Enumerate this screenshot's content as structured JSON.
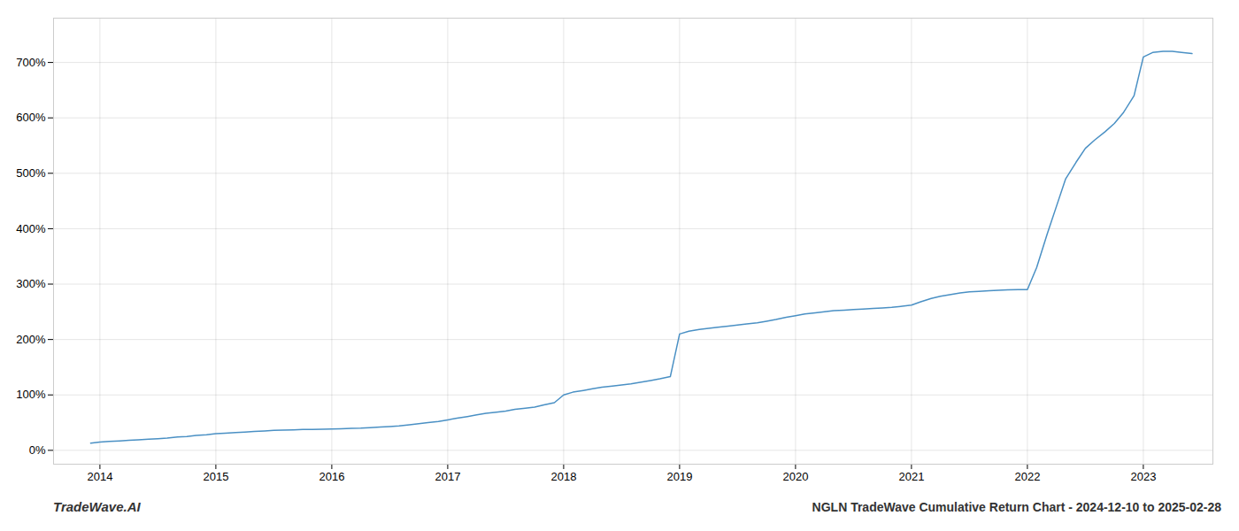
{
  "chart_data": {
    "type": "line",
    "title": "NGLN TradeWave Cumulative Return Chart - 2024-12-10 to 2025-02-28",
    "annotations": [
      "TradeWave.AI"
    ],
    "color": "#4a90c4",
    "grid": true,
    "x": [
      2013.92,
      2014.0,
      2014.08,
      2014.17,
      2014.25,
      2014.33,
      2014.42,
      2014.5,
      2014.58,
      2014.67,
      2014.75,
      2014.83,
      2014.92,
      2015.0,
      2015.08,
      2015.17,
      2015.25,
      2015.33,
      2015.42,
      2015.5,
      2015.58,
      2015.67,
      2015.75,
      2015.83,
      2015.92,
      2016.0,
      2016.08,
      2016.17,
      2016.25,
      2016.33,
      2016.42,
      2016.5,
      2016.58,
      2016.67,
      2016.75,
      2016.83,
      2016.92,
      2017.0,
      2017.08,
      2017.17,
      2017.25,
      2017.33,
      2017.42,
      2017.5,
      2017.58,
      2017.67,
      2017.75,
      2017.83,
      2017.92,
      2018.0,
      2018.08,
      2018.17,
      2018.25,
      2018.33,
      2018.42,
      2018.5,
      2018.58,
      2018.67,
      2018.75,
      2018.83,
      2018.92,
      2019.0,
      2019.08,
      2019.17,
      2019.25,
      2019.33,
      2019.42,
      2019.5,
      2019.58,
      2019.67,
      2019.75,
      2019.83,
      2019.92,
      2020.0,
      2020.08,
      2020.17,
      2020.25,
      2020.33,
      2020.42,
      2020.5,
      2020.58,
      2020.67,
      2020.75,
      2020.83,
      2020.92,
      2021.0,
      2021.08,
      2021.17,
      2021.25,
      2021.33,
      2021.42,
      2021.5,
      2021.58,
      2021.67,
      2021.75,
      2021.83,
      2021.92,
      2022.0,
      2022.08,
      2022.17,
      2022.25,
      2022.33,
      2022.42,
      2022.5,
      2022.58,
      2022.67,
      2022.75,
      2022.83,
      2022.92,
      2023.0,
      2023.08,
      2023.17,
      2023.25,
      2023.33,
      2023.42
    ],
    "values": [
      13,
      15,
      16,
      17,
      18,
      19,
      20,
      21,
      22,
      24,
      25,
      27,
      28,
      30,
      31,
      32,
      33,
      34,
      35,
      36,
      36.5,
      37,
      37.5,
      37.8,
      38,
      38.5,
      39,
      39.5,
      40,
      41,
      42,
      43,
      44,
      46,
      48,
      50,
      52,
      55,
      58,
      61,
      64,
      67,
      69,
      71,
      74,
      76,
      78,
      82,
      86,
      100,
      105,
      108,
      111,
      114,
      116,
      118,
      120,
      123,
      126,
      129,
      133,
      210,
      215,
      218,
      220,
      222,
      224,
      226,
      228,
      230,
      233,
      236,
      240,
      243,
      246,
      248,
      250,
      252,
      253,
      254,
      255,
      256,
      257,
      258,
      260,
      262,
      268,
      274,
      278,
      281,
      284,
      286,
      287,
      288,
      289,
      289.5,
      290,
      290,
      330,
      390,
      440,
      490,
      520,
      545,
      560,
      575,
      590,
      610,
      640,
      710,
      718,
      720,
      720,
      718,
      716
    ],
    "xlim": [
      2013.6,
      2023.6
    ],
    "xticks": [
      2014,
      2015,
      2016,
      2017,
      2018,
      2019,
      2020,
      2021,
      2022,
      2023
    ],
    "ylim": [
      -25,
      780
    ],
    "yticks": [
      {
        "value": 0,
        "label": "0%"
      },
      {
        "value": 100,
        "label": "100%"
      },
      {
        "value": 200,
        "label": "200%"
      },
      {
        "value": 300,
        "label": "300%"
      },
      {
        "value": 400,
        "label": "400%"
      },
      {
        "value": 500,
        "label": "500%"
      },
      {
        "value": 600,
        "label": "600%"
      },
      {
        "value": 700,
        "label": "700%"
      }
    ]
  }
}
